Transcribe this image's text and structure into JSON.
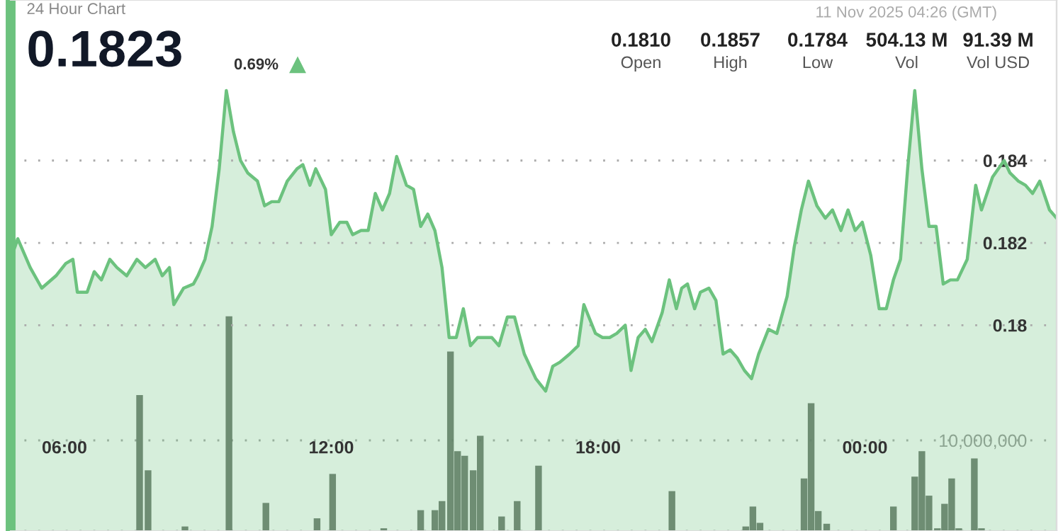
{
  "chart_data": {
    "type": "area",
    "title": "24 Hour Chart",
    "subtitle": "0.1823",
    "annotations": [
      "0.69%",
      "11 Nov 2025 04:26 (GMT)",
      "0.1810",
      "Open",
      "0.1857",
      "High",
      "0.1784",
      "Low",
      "504.13 M",
      "Vol",
      "91.39 M",
      "Vol USD"
    ],
    "xlim": [
      4.79,
      28.31
    ],
    "xticks": [
      {
        "value": 6,
        "label": "06:00"
      },
      {
        "value": 12,
        "label": "12:00"
      },
      {
        "value": 18,
        "label": "18:00"
      },
      {
        "value": 24,
        "label": "00:00"
      }
    ],
    "ylim": [
      0.175,
      0.1879
    ],
    "yticks": [
      0.18,
      0.182,
      0.184
    ],
    "y2lim": [
      0,
      58600000
    ],
    "y2ticks": [
      {
        "value": 0,
        "label": null
      },
      {
        "value": 10000000,
        "label": "10,000,000"
      }
    ],
    "grid": "y",
    "marker": "none",
    "line_style": "solid",
    "series": [
      {
        "color": "#6cc27e",
        "x": [
          4.79,
          4.95,
          5.23,
          5.49,
          5.81,
          6.03,
          6.19,
          6.29,
          6.51,
          6.67,
          6.83,
          7.02,
          7.18,
          7.4,
          7.63,
          7.82,
          8.04,
          8.2,
          8.36,
          8.46,
          8.68,
          8.9,
          9.0,
          9.16,
          9.32,
          9.48,
          9.64,
          9.8,
          9.96,
          10.12,
          10.34,
          10.5,
          10.66,
          10.82,
          11.01,
          11.23,
          11.36,
          11.52,
          11.65,
          11.87,
          12.0,
          12.19,
          12.35,
          12.48,
          12.67,
          12.83,
          12.99,
          13.15,
          13.31,
          13.47,
          13.69,
          13.85,
          14.01,
          14.17,
          14.33,
          14.49,
          14.65,
          14.81,
          14.97,
          15.13,
          15.29,
          15.45,
          15.61,
          15.77,
          15.96,
          16.12,
          16.34,
          16.6,
          16.82,
          16.98,
          17.14,
          17.36,
          17.55,
          17.68,
          17.94,
          18.1,
          18.26,
          18.42,
          18.61,
          18.74,
          18.9,
          19.06,
          19.21,
          19.44,
          19.6,
          19.76,
          19.88,
          20.01,
          20.17,
          20.3,
          20.49,
          20.65,
          20.81,
          20.97,
          21.13,
          21.29,
          21.45,
          21.61,
          21.83,
          22.02,
          22.25,
          22.41,
          22.57,
          22.73,
          22.92,
          23.11,
          23.27,
          23.46,
          23.62,
          23.78,
          23.94,
          24.13,
          24.32,
          24.48,
          24.64,
          24.8,
          24.96,
          25.12,
          25.28,
          25.44,
          25.6,
          25.76,
          25.92,
          26.08,
          26.3,
          26.49,
          26.62,
          26.87,
          27.13,
          27.26,
          27.45,
          27.61,
          27.77,
          27.93,
          28.15,
          28.31
        ],
        "values": [
          0.1816,
          0.1821,
          0.1814,
          0.1809,
          0.1812,
          0.1815,
          0.1816,
          0.1808,
          0.1808,
          0.1813,
          0.1811,
          0.1816,
          0.1814,
          0.1812,
          0.1816,
          0.1814,
          0.1816,
          0.1812,
          0.1814,
          0.1805,
          0.1809,
          0.181,
          0.1812,
          0.1816,
          0.1824,
          0.1838,
          0.1857,
          0.1847,
          0.184,
          0.1837,
          0.1835,
          0.1829,
          0.183,
          0.183,
          0.1835,
          0.1838,
          0.1839,
          0.1834,
          0.1838,
          0.1833,
          0.1822,
          0.1825,
          0.1825,
          0.1822,
          0.1823,
          0.1823,
          0.1832,
          0.1828,
          0.1832,
          0.1841,
          0.1834,
          0.1833,
          0.1824,
          0.1827,
          0.1823,
          0.1814,
          0.1797,
          0.1797,
          0.1804,
          0.1795,
          0.1797,
          0.1797,
          0.1797,
          0.1795,
          0.1802,
          0.1802,
          0.1793,
          0.1787,
          0.1784,
          0.179,
          0.1791,
          0.1793,
          0.1795,
          0.1805,
          0.1798,
          0.1797,
          0.1797,
          0.1798,
          0.18,
          0.1789,
          0.1797,
          0.1799,
          0.1796,
          0.1803,
          0.1811,
          0.1804,
          0.1809,
          0.181,
          0.1804,
          0.1808,
          0.1809,
          0.1806,
          0.1793,
          0.1794,
          0.1792,
          0.1789,
          0.1787,
          0.1793,
          0.1799,
          0.1798,
          0.1807,
          0.1819,
          0.1828,
          0.1835,
          0.1829,
          0.1826,
          0.1828,
          0.1823,
          0.1828,
          0.1823,
          0.1825,
          0.1817,
          0.1804,
          0.1804,
          0.1811,
          0.1816,
          0.1838,
          0.1857,
          0.1838,
          0.1824,
          0.1824,
          0.181,
          0.1811,
          0.1811,
          0.1816,
          0.1834,
          0.1828,
          0.1836,
          0.184,
          0.1837,
          0.1835,
          0.1834,
          0.1832,
          0.1835,
          0.1828,
          0.1826
        ]
      },
      {
        "type": "bar",
        "axis": "y2",
        "color": "#5f6a60",
        "x": [
          7.69,
          7.88,
          8.71,
          9.7,
          10.53,
          11.68,
          12.03,
          13.18,
          14.01,
          14.33,
          14.49,
          14.68,
          14.84,
          15.0,
          15.19,
          15.35,
          15.83,
          16.18,
          16.66,
          19.66,
          21.32,
          21.48,
          21.64,
          22.63,
          22.79,
          22.95,
          23.14,
          24.64,
          25.12,
          25.28,
          25.44,
          25.63,
          25.79,
          25.95,
          26.11,
          26.46,
          26.62
        ],
        "values": [
          15000000,
          6700000,
          500000,
          23700000,
          3100000,
          1400000,
          6300000,
          300000,
          2300000,
          2300000,
          3300000,
          19800000,
          8800000,
          8300000,
          6700000,
          10500000,
          1600000,
          3300000,
          7200000,
          4400000,
          500000,
          2700000,
          900000,
          5800000,
          14100000,
          2200000,
          800000,
          2700000,
          6000000,
          8800000,
          3900000,
          300000,
          3000000,
          5800000,
          300000,
          8000000,
          300000
        ]
      }
    ]
  }
}
